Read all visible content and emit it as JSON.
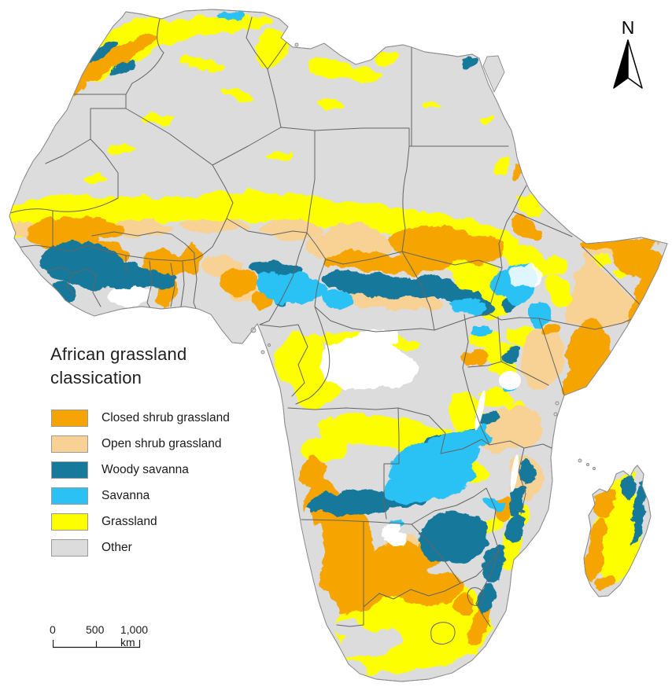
{
  "title": {
    "line1": "African grassland",
    "line2": "classication"
  },
  "legend": {
    "swatch_border_color": "#9A9A9A",
    "items": [
      {
        "key": "closed",
        "label": "Closed shrub grassland",
        "color": "#F6A405"
      },
      {
        "key": "open",
        "label": "Open shrub grassland",
        "color": "#F7D294"
      },
      {
        "key": "woody",
        "label": "Woody savanna",
        "color": "#17799C"
      },
      {
        "key": "savanna",
        "label": "Savanna",
        "color": "#2BC1F5"
      },
      {
        "key": "grass",
        "label": "Grassland",
        "color": "#FDFF00"
      },
      {
        "key": "other",
        "label": "Other",
        "color": "#DCDCDC"
      }
    ]
  },
  "scale_bar": {
    "labels": [
      "0",
      "500",
      "1,000 km"
    ]
  },
  "north_arrow": {
    "label": "N"
  },
  "map": {
    "ocean_color": "#FFFFFF",
    "land_color": "#DCDCDC",
    "country_border_color": "#646464"
  }
}
